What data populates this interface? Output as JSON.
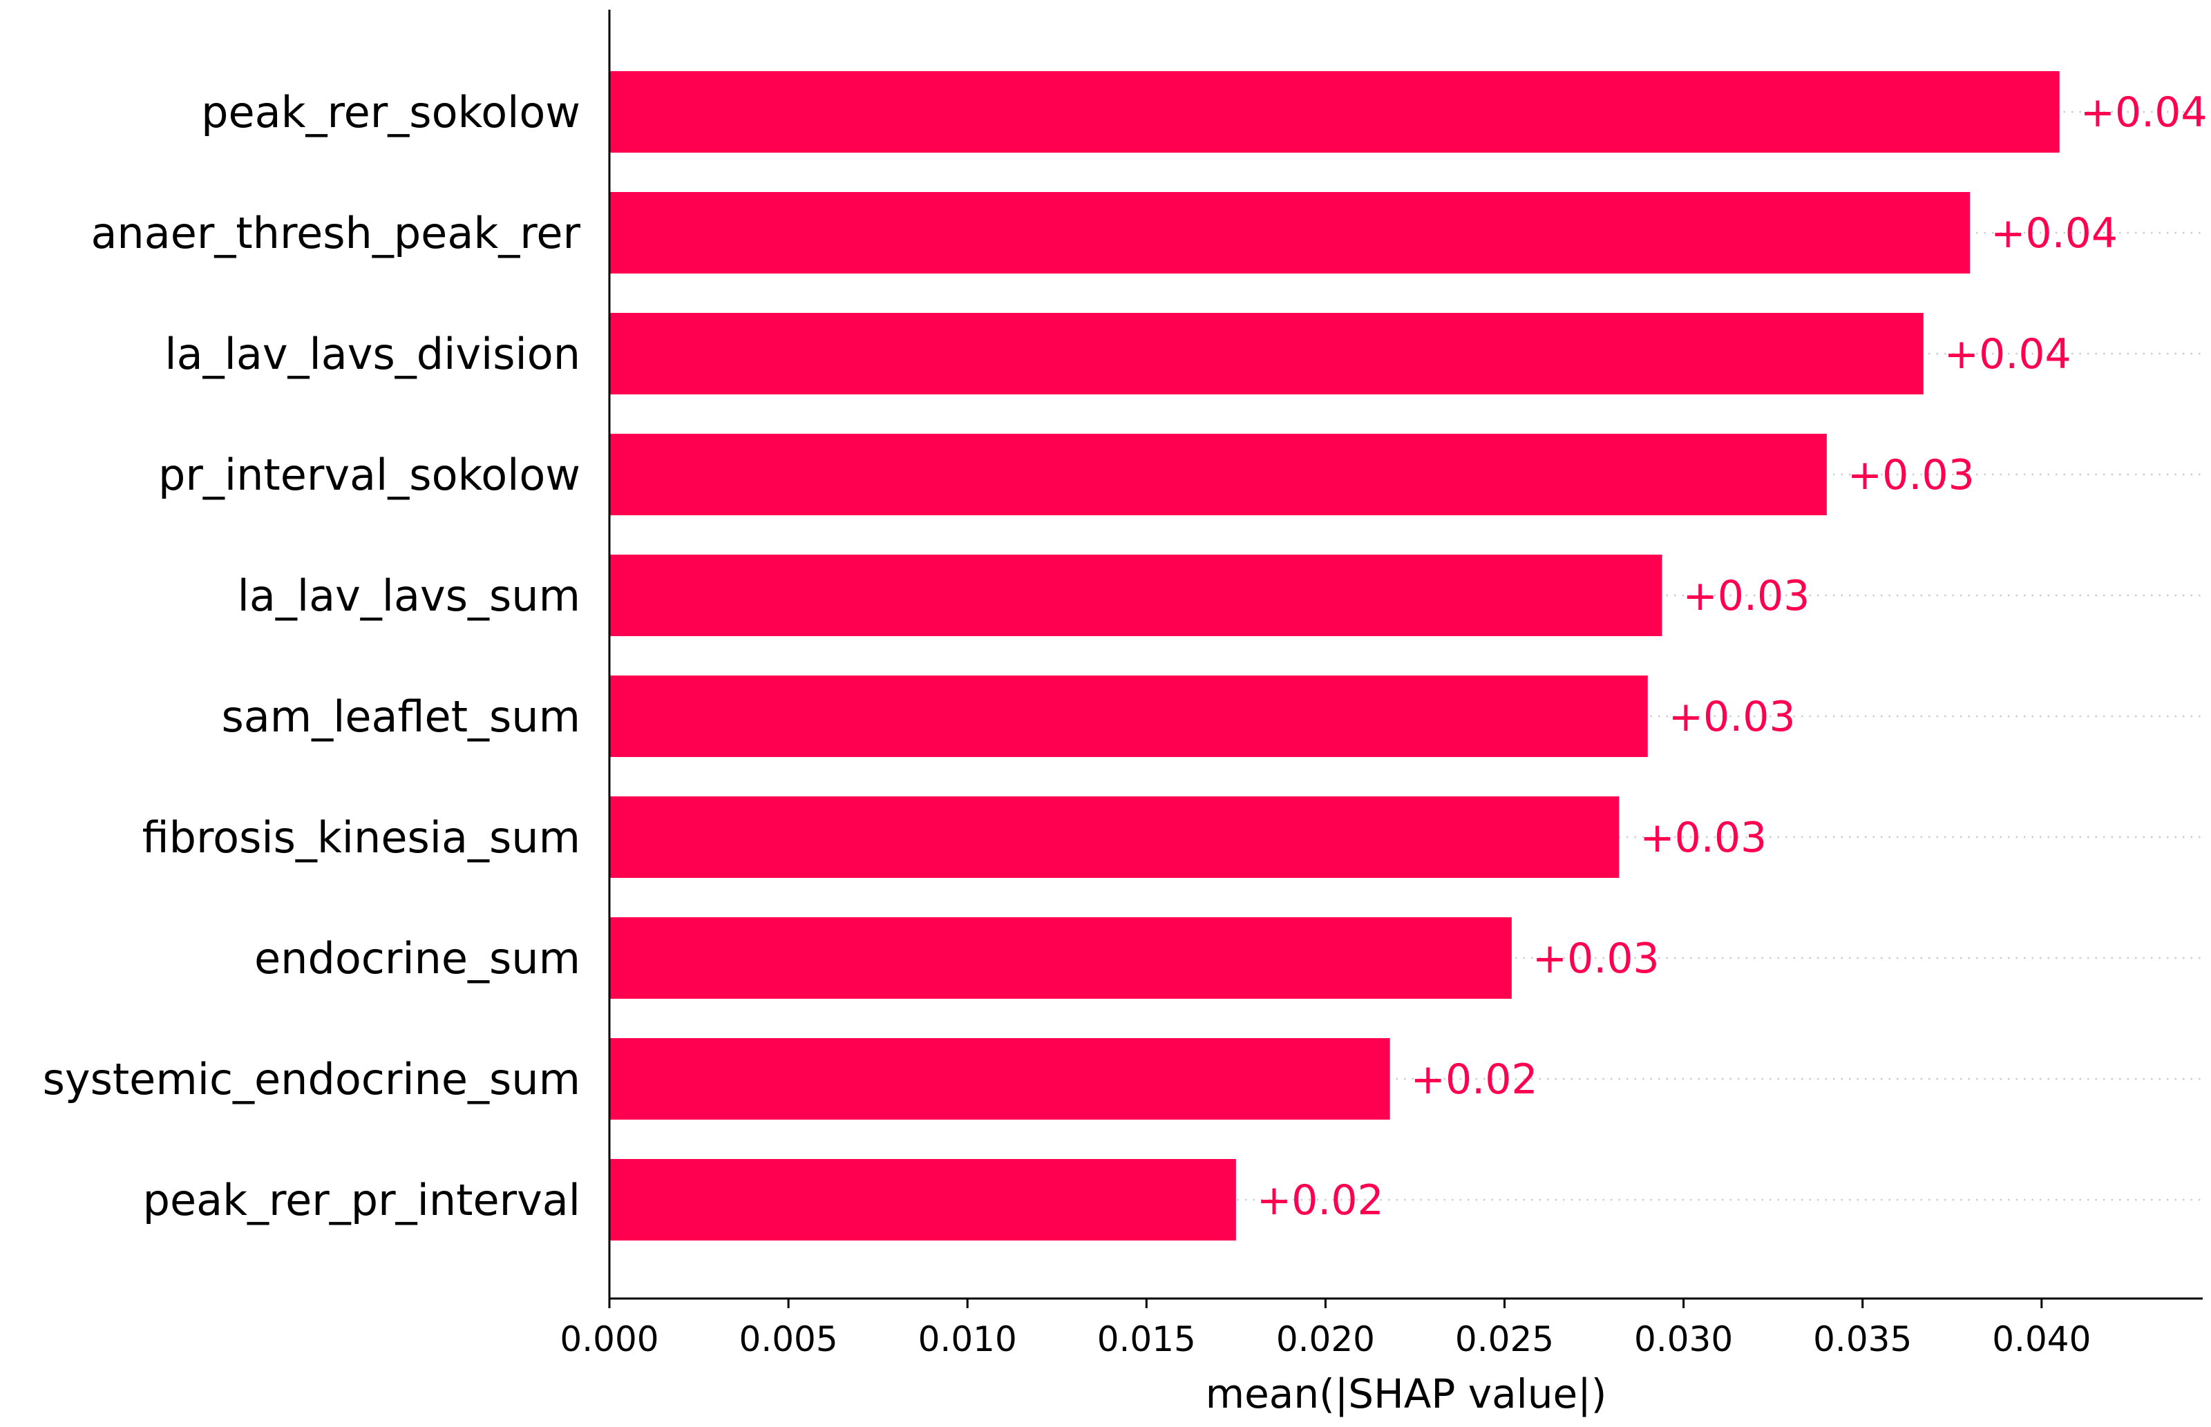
{
  "chart_data": {
    "type": "bar",
    "orientation": "horizontal",
    "xlabel": "mean(|SHAP value|)",
    "xlim": [
      0,
      0.0445
    ],
    "xticks": [
      "0.000",
      "0.005",
      "0.010",
      "0.015",
      "0.020",
      "0.025",
      "0.030",
      "0.035",
      "0.040"
    ],
    "bar_color": "#ff0051",
    "grid": false,
    "bars": [
      {
        "category": "peak_rer_sokolow",
        "value": 0.0405,
        "label": "+0.04"
      },
      {
        "category": "anaer_thresh_peak_rer",
        "value": 0.038,
        "label": "+0.04"
      },
      {
        "category": "la_lav_lavs_division",
        "value": 0.0367,
        "label": "+0.04"
      },
      {
        "category": "pr_interval_sokolow",
        "value": 0.034,
        "label": "+0.03"
      },
      {
        "category": "la_lav_lavs_sum",
        "value": 0.0294,
        "label": "+0.03"
      },
      {
        "category": "sam_leaflet_sum",
        "value": 0.029,
        "label": "+0.03"
      },
      {
        "category": "fibrosis_kinesia_sum",
        "value": 0.0282,
        "label": "+0.03"
      },
      {
        "category": "endocrine_sum",
        "value": 0.0252,
        "label": "+0.03"
      },
      {
        "category": "systemic_endocrine_sum",
        "value": 0.0218,
        "label": "+0.02"
      },
      {
        "category": "peak_rer_pr_interval",
        "value": 0.0175,
        "label": "+0.02"
      }
    ]
  }
}
